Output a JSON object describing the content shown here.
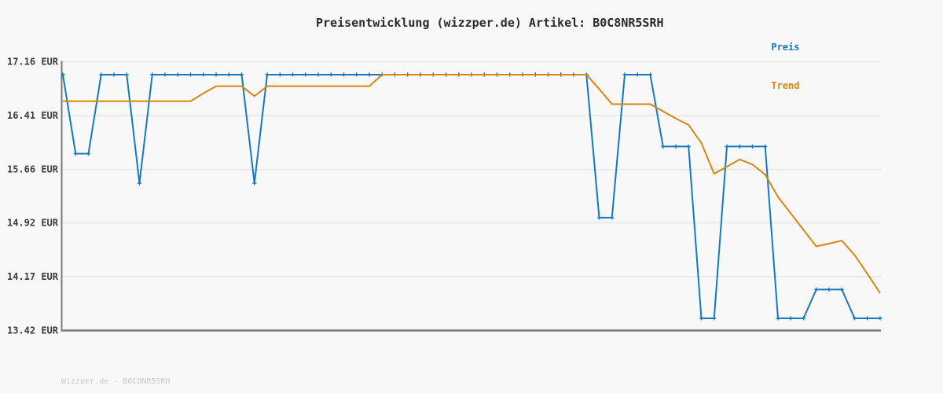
{
  "page": {
    "background_color": "#f8f8f8",
    "watermark": "Wizzper.de - B0C8NR5SRH"
  },
  "chart_data": {
    "type": "line",
    "title": "Preisentwicklung (wizzper.de) Artikel: B0C8NR5SRH",
    "currency": "EUR",
    "xlabel": "",
    "ylabel": "",
    "x_tick_labels": [],
    "ylim": [
      13.42,
      17.16
    ],
    "yticks": [
      {
        "value": 17.16,
        "label": "17.16 EUR"
      },
      {
        "value": 16.41,
        "label": "16.41 EUR"
      },
      {
        "value": 15.66,
        "label": "15.66 EUR"
      },
      {
        "value": 14.92,
        "label": "14.92 EUR"
      },
      {
        "value": 14.17,
        "label": "14.17 EUR"
      },
      {
        "value": 13.42,
        "label": "13.42 EUR"
      }
    ],
    "grid": true,
    "legend_position": "top-right",
    "colors": {
      "grid": "#e9e9e9",
      "axis": "#7a7a7a",
      "tick_text": "#3c3c3c",
      "title_text": "#2b2b2b",
      "watermark_text": "#c9c9c9",
      "background": "#f8f8f8"
    },
    "series": [
      {
        "name": "Preis",
        "color": "#1878bf",
        "marker": "plus",
        "values": [
          16.98,
          15.88,
          15.88,
          16.98,
          16.98,
          16.98,
          15.47,
          16.98,
          16.98,
          16.98,
          16.98,
          16.98,
          16.98,
          16.98,
          16.98,
          15.47,
          16.98,
          16.98,
          16.98,
          16.98,
          16.98,
          16.98,
          16.98,
          16.98,
          16.98,
          16.98,
          16.98,
          16.98,
          16.98,
          16.98,
          16.98,
          16.98,
          16.98,
          16.98,
          16.98,
          16.98,
          16.98,
          16.98,
          16.98,
          16.98,
          16.98,
          16.98,
          14.99,
          14.99,
          16.98,
          16.98,
          16.98,
          15.98,
          15.98,
          15.98,
          13.59,
          13.59,
          15.98,
          15.98,
          15.98,
          15.98,
          13.59,
          13.59,
          13.59,
          13.99,
          13.99,
          13.99,
          13.59,
          13.59,
          13.59
        ]
      },
      {
        "name": "Trend",
        "color": "#d9850f",
        "marker": "none",
        "values": [
          16.61,
          16.61,
          16.61,
          16.61,
          16.61,
          16.61,
          16.61,
          16.61,
          16.61,
          16.61,
          16.61,
          16.72,
          16.82,
          16.82,
          16.82,
          16.68,
          16.82,
          16.82,
          16.82,
          16.82,
          16.82,
          16.82,
          16.82,
          16.82,
          16.82,
          16.98,
          16.98,
          16.98,
          16.98,
          16.98,
          16.98,
          16.98,
          16.98,
          16.98,
          16.98,
          16.98,
          16.98,
          16.98,
          16.98,
          16.98,
          16.98,
          16.98,
          16.78,
          16.57,
          16.57,
          16.57,
          16.57,
          16.47,
          16.37,
          16.28,
          16.03,
          15.6,
          15.7,
          15.8,
          15.73,
          15.59,
          15.28,
          15.05,
          14.82,
          14.59,
          14.63,
          14.67,
          14.47,
          14.21,
          13.94
        ]
      }
    ]
  }
}
